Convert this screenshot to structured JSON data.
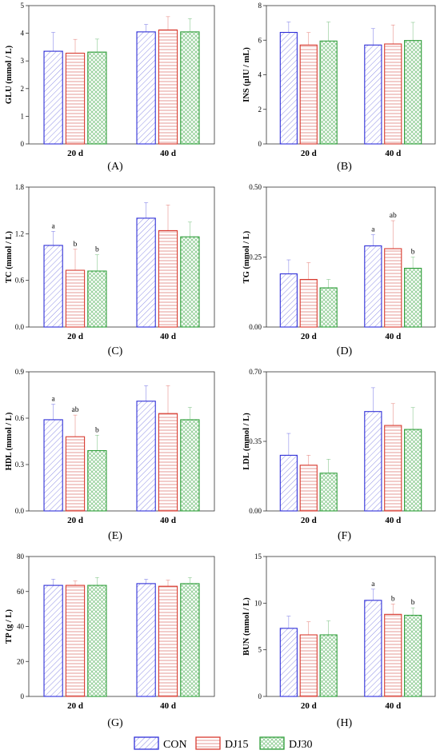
{
  "chart_data": [
    {
      "type": "bar",
      "panel": "(A)",
      "ylabel": "GLU (mmol / L)",
      "ylim": [
        0,
        5
      ],
      "yticks": [
        0,
        1,
        2,
        3,
        4,
        5
      ],
      "tick_labels": [
        "0",
        "1",
        "2",
        "3",
        "4",
        "5"
      ],
      "categories": [
        "20 d",
        "40 d"
      ],
      "series": [
        {
          "name": "CON",
          "values": [
            3.35,
            4.05
          ],
          "errors": [
            0.68,
            0.27
          ],
          "sig": [
            "",
            ""
          ]
        },
        {
          "name": "DJ15",
          "values": [
            3.28,
            4.12
          ],
          "errors": [
            0.5,
            0.48
          ],
          "sig": [
            "",
            ""
          ]
        },
        {
          "name": "DJ30",
          "values": [
            3.32,
            4.05
          ],
          "errors": [
            0.47,
            0.48
          ],
          "sig": [
            "",
            ""
          ]
        }
      ]
    },
    {
      "type": "bar",
      "panel": "(B)",
      "ylabel": "INS (μIU / mL)",
      "ylim": [
        0,
        8
      ],
      "yticks": [
        0,
        2,
        4,
        6,
        8
      ],
      "tick_labels": [
        "0",
        "2",
        "4",
        "6",
        "8"
      ],
      "categories": [
        "20 d",
        "40 d"
      ],
      "series": [
        {
          "name": "CON",
          "values": [
            6.45,
            5.72
          ],
          "errors": [
            0.6,
            0.95
          ],
          "sig": [
            "",
            ""
          ]
        },
        {
          "name": "DJ15",
          "values": [
            5.72,
            5.78
          ],
          "errors": [
            0.72,
            1.1
          ],
          "sig": [
            "",
            ""
          ]
        },
        {
          "name": "DJ30",
          "values": [
            5.95,
            5.98
          ],
          "errors": [
            1.1,
            1.05
          ],
          "sig": [
            "",
            ""
          ]
        }
      ]
    },
    {
      "type": "bar",
      "panel": "(C)",
      "ylabel": "TC (mmol / L)",
      "ylim": [
        0,
        1.8
      ],
      "yticks": [
        0,
        0.6,
        1.2,
        1.8
      ],
      "tick_labels": [
        "0.0",
        "0.6",
        "1.2",
        "1.8"
      ],
      "categories": [
        "20 d",
        "40 d"
      ],
      "series": [
        {
          "name": "CON",
          "values": [
            1.05,
            1.4
          ],
          "errors": [
            0.18,
            0.2
          ],
          "sig": [
            "a",
            ""
          ]
        },
        {
          "name": "DJ15",
          "values": [
            0.73,
            1.24
          ],
          "errors": [
            0.27,
            0.33
          ],
          "sig": [
            "b",
            ""
          ]
        },
        {
          "name": "DJ30",
          "values": [
            0.72,
            1.16
          ],
          "errors": [
            0.21,
            0.19
          ],
          "sig": [
            "b",
            ""
          ]
        }
      ]
    },
    {
      "type": "bar",
      "panel": "(D)",
      "ylabel": "TG (mmol / L)",
      "ylim": [
        0,
        0.5
      ],
      "yticks": [
        0,
        0.25,
        0.5
      ],
      "tick_labels": [
        "0.00",
        "0.25",
        "0.50"
      ],
      "categories": [
        "20 d",
        "40 d"
      ],
      "series": [
        {
          "name": "CON",
          "values": [
            0.19,
            0.29
          ],
          "errors": [
            0.05,
            0.04
          ],
          "sig": [
            "",
            "a"
          ]
        },
        {
          "name": "DJ15",
          "values": [
            0.17,
            0.28
          ],
          "errors": [
            0.06,
            0.1
          ],
          "sig": [
            "",
            "ab"
          ]
        },
        {
          "name": "DJ30",
          "values": [
            0.14,
            0.21
          ],
          "errors": [
            0.03,
            0.04
          ],
          "sig": [
            "",
            "b"
          ]
        }
      ]
    },
    {
      "type": "bar",
      "panel": "(E)",
      "ylabel": "HDL (mmol / L)",
      "ylim": [
        0,
        0.9
      ],
      "yticks": [
        0,
        0.3,
        0.6,
        0.9
      ],
      "tick_labels": [
        "0.0",
        "0.3",
        "0.6",
        "0.9"
      ],
      "categories": [
        "20 d",
        "40 d"
      ],
      "series": [
        {
          "name": "CON",
          "values": [
            0.59,
            0.71
          ],
          "errors": [
            0.1,
            0.1
          ],
          "sig": [
            "a",
            ""
          ]
        },
        {
          "name": "DJ15",
          "values": [
            0.48,
            0.63
          ],
          "errors": [
            0.14,
            0.18
          ],
          "sig": [
            "ab",
            ""
          ]
        },
        {
          "name": "DJ30",
          "values": [
            0.39,
            0.59
          ],
          "errors": [
            0.1,
            0.08
          ],
          "sig": [
            "b",
            ""
          ]
        }
      ]
    },
    {
      "type": "bar",
      "panel": "(F)",
      "ylabel": "LDL (mmol / L)",
      "ylim": [
        0,
        0.7
      ],
      "yticks": [
        0,
        0.35,
        0.7
      ],
      "tick_labels": [
        "0.00",
        "0.35",
        "0.70"
      ],
      "categories": [
        "20 d",
        "40 d"
      ],
      "series": [
        {
          "name": "CON",
          "values": [
            0.28,
            0.5
          ],
          "errors": [
            0.11,
            0.12
          ],
          "sig": [
            "",
            ""
          ]
        },
        {
          "name": "DJ15",
          "values": [
            0.23,
            0.43
          ],
          "errors": [
            0.05,
            0.11
          ],
          "sig": [
            "",
            ""
          ]
        },
        {
          "name": "DJ30",
          "values": [
            0.19,
            0.41
          ],
          "errors": [
            0.07,
            0.11
          ],
          "sig": [
            "",
            ""
          ]
        }
      ]
    },
    {
      "type": "bar",
      "panel": "(G)",
      "ylabel": "TP (g / L)",
      "ylim": [
        0,
        80
      ],
      "yticks": [
        0,
        20,
        40,
        60,
        80
      ],
      "tick_labels": [
        "0",
        "20",
        "40",
        "60",
        "80"
      ],
      "categories": [
        "20 d",
        "40 d"
      ],
      "series": [
        {
          "name": "CON",
          "values": [
            63.5,
            64.5
          ],
          "errors": [
            3.5,
            2.5
          ],
          "sig": [
            "",
            ""
          ]
        },
        {
          "name": "DJ15",
          "values": [
            63.5,
            63.0
          ],
          "errors": [
            2.5,
            3.5
          ],
          "sig": [
            "",
            ""
          ]
        },
        {
          "name": "DJ30",
          "values": [
            63.5,
            64.5
          ],
          "errors": [
            4.5,
            3.5
          ],
          "sig": [
            "",
            ""
          ]
        }
      ]
    },
    {
      "type": "bar",
      "panel": "(H)",
      "ylabel": "BUN (mmol / L)",
      "ylim": [
        0,
        15
      ],
      "yticks": [
        0,
        5,
        10,
        15
      ],
      "tick_labels": [
        "0",
        "5",
        "10",
        "15"
      ],
      "categories": [
        "20 d",
        "40 d"
      ],
      "series": [
        {
          "name": "CON",
          "values": [
            7.3,
            10.3
          ],
          "errors": [
            1.3,
            1.2
          ],
          "sig": [
            "",
            "a"
          ]
        },
        {
          "name": "DJ15",
          "values": [
            6.6,
            8.8
          ],
          "errors": [
            1.4,
            1.1
          ],
          "sig": [
            "",
            "b"
          ]
        },
        {
          "name": "DJ30",
          "values": [
            6.6,
            8.7
          ],
          "errors": [
            1.5,
            0.8
          ],
          "sig": [
            "",
            "b"
          ]
        }
      ]
    }
  ],
  "legend": [
    {
      "name": "CON",
      "color": "#2f2fd8",
      "pattern": "diagonal-hatch"
    },
    {
      "name": "DJ15",
      "color": "#d83a2f",
      "pattern": "horizontal-lines"
    },
    {
      "name": "DJ30",
      "color": "#2f9e3a",
      "pattern": "crosshatch"
    }
  ]
}
